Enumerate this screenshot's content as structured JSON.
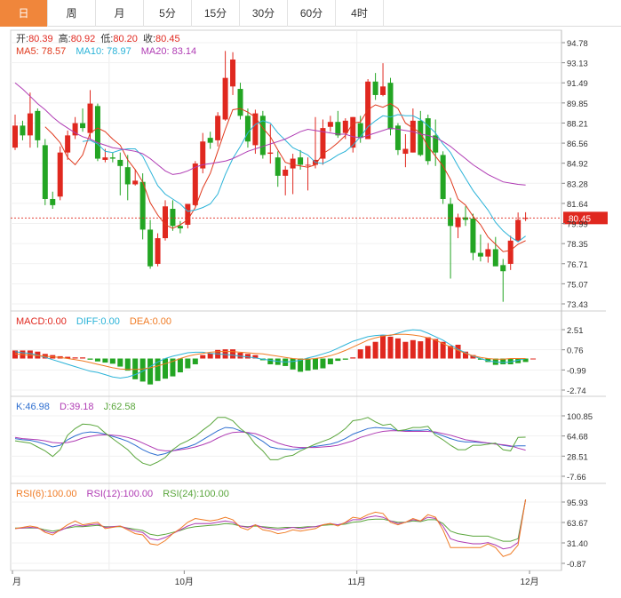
{
  "tabs": [
    {
      "label": "日",
      "active": true
    },
    {
      "label": "周",
      "active": false
    },
    {
      "label": "月",
      "active": false
    },
    {
      "label": "5分",
      "active": false
    },
    {
      "label": "15分",
      "active": false
    },
    {
      "label": "30分",
      "active": false
    },
    {
      "label": "60分",
      "active": false
    },
    {
      "label": "4时",
      "active": false
    }
  ],
  "legend": {
    "ohlc": {
      "open_label": "开:",
      "open": "80.39",
      "high_label": "高:",
      "high": "80.92",
      "low_label": "低:",
      "low": "80.20",
      "close_label": "收:",
      "close": "80.45"
    },
    "ma": {
      "ma5": "MA5: 78.57",
      "ma10": "MA10: 78.97",
      "ma20": "MA20: 83.14"
    },
    "macd": {
      "macd": "MACD:0.00",
      "diff": "DIFF:0.00",
      "dea": "DEA:0.00"
    },
    "kdj": {
      "k": "K:46.98",
      "d": "D:39.18",
      "j": "J:62.58"
    },
    "rsi": {
      "rsi6": "RSI(6):100.00",
      "rsi12": "RSI(12):100.00",
      "rsi24": "RSI(24):100.00"
    }
  },
  "colors": {
    "up": "#e0281f",
    "down": "#23a523",
    "ma5": "#e0381c",
    "ma10": "#2bb3d8",
    "ma20": "#b03cb4",
    "diff": "#2bb3d8",
    "dea": "#f07b24",
    "k": "#2f6fd0",
    "d": "#b03cb4",
    "j": "#5aa63c",
    "tab_active": "#f0863b",
    "last_price": "#e0281f"
  },
  "x_labels": [
    "月",
    "10月",
    "11月",
    "12月"
  ],
  "chart_data": [
    {
      "type": "candlestick",
      "y_ticks": [
        "94.78",
        "93.13",
        "91.49",
        "89.85",
        "88.21",
        "86.56",
        "84.92",
        "83.28",
        "81.64",
        "79.99",
        "78.35",
        "76.71",
        "75.07",
        "73.43"
      ],
      "ylim": [
        72.6,
        95.6
      ],
      "last_price": "80.45",
      "candles": [
        [
          86.2,
          88.9,
          86.0,
          88.0
        ],
        [
          88.0,
          88.4,
          86.8,
          87.2
        ],
        [
          87.2,
          90.7,
          86.2,
          89.0
        ],
        [
          89.2,
          89.4,
          86.2,
          86.8
        ],
        [
          86.4,
          86.9,
          81.5,
          82.0
        ],
        [
          82.0,
          82.6,
          81.2,
          81.5
        ],
        [
          82.2,
          86.3,
          81.9,
          85.8
        ],
        [
          85.8,
          87.6,
          85.2,
          87.2
        ],
        [
          87.2,
          88.7,
          86.9,
          88.2
        ],
        [
          88.2,
          89.4,
          87.5,
          87.8
        ],
        [
          87.4,
          90.9,
          86.9,
          89.8
        ],
        [
          89.6,
          89.8,
          85.1,
          85.3
        ],
        [
          85.2,
          86.1,
          85.0,
          85.4
        ],
        [
          85.4,
          85.8,
          85.0,
          85.3
        ],
        [
          85.2,
          85.8,
          82.3,
          84.7
        ],
        [
          84.6,
          85.6,
          81.9,
          83.2
        ],
        [
          83.2,
          84.4,
          83.1,
          83.5
        ],
        [
          83.4,
          84.1,
          78.7,
          79.5
        ],
        [
          79.5,
          80.3,
          76.3,
          76.5
        ],
        [
          76.7,
          79.2,
          76.5,
          78.8
        ],
        [
          78.8,
          81.9,
          78.6,
          81.4
        ],
        [
          81.2,
          81.9,
          79.4,
          79.8
        ],
        [
          79.8,
          80.2,
          79.2,
          79.6
        ],
        [
          79.9,
          81.6,
          79.6,
          81.6
        ],
        [
          81.5,
          85.1,
          81.4,
          84.9
        ],
        [
          84.5,
          87.4,
          84.1,
          86.7
        ],
        [
          87.0,
          87.5,
          86.1,
          86.6
        ],
        [
          86.8,
          89.1,
          86.3,
          88.8
        ],
        [
          88.5,
          94.1,
          88.4,
          91.9
        ],
        [
          91.2,
          94.0,
          90.5,
          93.4
        ],
        [
          91.0,
          91.5,
          88.5,
          88.8
        ],
        [
          88.8,
          89.4,
          86.2,
          86.7
        ],
        [
          86.4,
          89.3,
          85.7,
          89.0
        ],
        [
          88.8,
          89.2,
          85.3,
          85.6
        ],
        [
          85.7,
          88.1,
          84.9,
          85.8
        ],
        [
          85.4,
          85.9,
          83.0,
          83.9
        ],
        [
          83.9,
          84.7,
          82.3,
          84.4
        ],
        [
          84.5,
          85.7,
          82.4,
          85.3
        ],
        [
          85.4,
          86.0,
          84.4,
          84.8
        ],
        [
          84.8,
          85.4,
          82.7,
          84.8
        ],
        [
          84.8,
          88.7,
          84.5,
          85.2
        ],
        [
          85.3,
          88.5,
          84.8,
          87.8
        ],
        [
          87.9,
          88.8,
          87.5,
          88.3
        ],
        [
          88.3,
          89.2,
          87.0,
          87.2
        ],
        [
          87.4,
          88.6,
          86.9,
          88.4
        ],
        [
          86.2,
          88.7,
          85.8,
          88.7
        ],
        [
          88.2,
          88.8,
          86.6,
          87.0
        ],
        [
          86.9,
          91.8,
          86.9,
          91.6
        ],
        [
          91.6,
          92.3,
          90.1,
          90.5
        ],
        [
          90.5,
          93.1,
          90.4,
          91.2
        ],
        [
          91.5,
          91.9,
          87.2,
          87.7
        ],
        [
          88.0,
          88.2,
          85.6,
          86.0
        ],
        [
          85.7,
          87.3,
          84.6,
          86.1
        ],
        [
          85.8,
          89.4,
          85.8,
          88.4
        ],
        [
          88.4,
          89.2,
          85.5,
          85.6
        ],
        [
          88.6,
          88.9,
          84.8,
          85.1
        ],
        [
          87.2,
          88.5,
          84.7,
          85.8
        ],
        [
          85.6,
          85.9,
          81.6,
          82.0
        ],
        [
          81.6,
          82.1,
          75.5,
          79.8
        ],
        [
          79.7,
          80.8,
          78.8,
          80.5
        ],
        [
          80.5,
          81.4,
          79.8,
          80.3
        ],
        [
          80.4,
          80.8,
          77.0,
          77.6
        ],
        [
          77.6,
          79.1,
          76.9,
          77.3
        ],
        [
          77.3,
          78.4,
          76.8,
          77.9
        ],
        [
          77.9,
          78.9,
          76.7,
          76.5
        ],
        [
          76.6,
          77.1,
          73.6,
          76.1
        ],
        [
          76.7,
          79.0,
          76.2,
          78.6
        ],
        [
          78.6,
          80.9,
          78.5,
          80.3
        ],
        [
          80.39,
          80.92,
          80.2,
          80.45
        ]
      ],
      "ma5": [
        null,
        null,
        null,
        null,
        87.9,
        87.3,
        86.6,
        85.4,
        84.8,
        85.6,
        87.4,
        87.8,
        87.5,
        86.9,
        86.4,
        85.2,
        84.4,
        83.4,
        81.7,
        80.7,
        79.9,
        79.6,
        79.9,
        80.3,
        81.3,
        82.9,
        84.1,
        85.9,
        87.7,
        89.3,
        89.4,
        89.1,
        88.7,
        87.8,
        87.1,
        86.0,
        85.0,
        84.8,
        84.7,
        84.6,
        84.8,
        85.7,
        86.1,
        86.6,
        87.2,
        88.2,
        88.3,
        89.3,
        89.7,
        89.5,
        89.8,
        89.4,
        88.2,
        87.8,
        87.4,
        86.3,
        85.5,
        84.7,
        83.6,
        82.0,
        81.5,
        80.6,
        79.9,
        78.9,
        78.3,
        77.7,
        77.8,
        78.3,
        78.6
      ],
      "ma10": [
        null,
        null,
        null,
        null,
        null,
        null,
        null,
        null,
        null,
        86.7,
        86.8,
        86.5,
        85.9,
        85.8,
        86.0,
        86.1,
        86.1,
        85.5,
        84.3,
        83.1,
        82.4,
        82.0,
        81.6,
        81.0,
        81.1,
        81.3,
        81.6,
        82.4,
        84.0,
        85.3,
        86.3,
        87.4,
        88.1,
        88.4,
        88.2,
        87.4,
        86.8,
        86.2,
        85.9,
        85.6,
        85.0,
        84.9,
        85.2,
        85.6,
        85.9,
        86.4,
        87.1,
        87.9,
        88.4,
        88.8,
        88.7,
        88.9,
        88.8,
        88.8,
        88.5,
        88.0,
        87.4,
        86.5,
        85.8,
        84.7,
        83.7,
        82.7,
        81.9,
        81.1,
        80.1,
        79.4,
        78.9,
        78.5,
        78.97
      ],
      "ma20": [
        91.5,
        91.0,
        90.4,
        89.8,
        89.3,
        88.7,
        88.2,
        87.8,
        87.4,
        87.1,
        86.9,
        86.6,
        86.4,
        86.2,
        86.1,
        86.0,
        85.9,
        85.7,
        85.3,
        84.8,
        84.3,
        84.0,
        84.1,
        84.3,
        84.6,
        84.8,
        84.9,
        85.0,
        85.1,
        85.3,
        85.6,
        85.9,
        86.1,
        86.3,
        86.5,
        86.7,
        86.9,
        87.2,
        87.5,
        87.7,
        87.6,
        87.5,
        87.4,
        87.3,
        87.3,
        87.1,
        87.0,
        87.2,
        87.4,
        87.6,
        87.8,
        87.7,
        87.6,
        87.5,
        87.3,
        87.2,
        87.0,
        86.7,
        86.3,
        85.8,
        85.3,
        84.8,
        84.4,
        84.0,
        83.7,
        83.4,
        83.3,
        83.2,
        83.14
      ]
    },
    {
      "type": "macd",
      "y_ticks": [
        "2.51",
        "0.76",
        "-0.99",
        "-2.74"
      ],
      "ylim": [
        -3.6,
        3.3
      ],
      "hist": [
        0.7,
        0.7,
        0.7,
        0.6,
        0.4,
        0.3,
        0.2,
        0.15,
        0.1,
        0.1,
        -0.1,
        -0.25,
        -0.35,
        -0.45,
        -0.7,
        -1.05,
        -1.8,
        -2.0,
        -2.25,
        -1.95,
        -1.75,
        -1.55,
        -1.2,
        -0.85,
        -0.5,
        0.3,
        0.45,
        0.75,
        0.8,
        0.8,
        0.5,
        0.4,
        0.3,
        -0.15,
        -0.5,
        -0.55,
        -0.65,
        -0.95,
        -1.15,
        -1.05,
        -0.95,
        -0.85,
        -0.5,
        -0.2,
        -0.1,
        0.1,
        0.8,
        1.1,
        1.45,
        2.0,
        1.9,
        1.75,
        1.45,
        1.6,
        1.5,
        1.85,
        1.7,
        1.45,
        1.1,
        1.2,
        0.6,
        0.3,
        -0.1,
        -0.3,
        -0.55,
        -0.5,
        -0.5,
        -0.4,
        -0.3,
        0.0
      ],
      "diff": [
        0.6,
        0.5,
        0.45,
        0.3,
        0.1,
        -0.1,
        -0.3,
        -0.5,
        -0.7,
        -0.9,
        -1.1,
        -1.2,
        -1.4,
        -1.6,
        -1.7,
        -1.6,
        -1.4,
        -1.1,
        -0.7,
        -0.3,
        0.0,
        0.2,
        0.35,
        0.5,
        0.55,
        0.55,
        0.45,
        0.4,
        0.35,
        0.3,
        0.2,
        0.15,
        0.05,
        -0.05,
        -0.15,
        -0.25,
        -0.3,
        -0.25,
        -0.15,
        0.05,
        0.2,
        0.4,
        0.6,
        0.9,
        1.2,
        1.5,
        1.7,
        1.9,
        2.0,
        2.05,
        2.0,
        2.2,
        2.4,
        2.5,
        2.45,
        2.2,
        1.9,
        1.6,
        1.2,
        0.8,
        0.5,
        0.2,
        0.0,
        -0.2,
        -0.3,
        -0.35,
        -0.3,
        -0.15,
        0.0
      ],
      "dea": [
        0.4,
        0.35,
        0.3,
        0.25,
        0.2,
        0.15,
        0.1,
        0.0,
        -0.1,
        -0.2,
        -0.35,
        -0.5,
        -0.65,
        -0.8,
        -0.9,
        -0.95,
        -0.95,
        -0.9,
        -0.8,
        -0.65,
        -0.45,
        -0.25,
        0.0,
        0.2,
        0.35,
        0.45,
        0.55,
        0.6,
        0.62,
        0.6,
        0.55,
        0.5,
        0.45,
        0.4,
        0.3,
        0.2,
        0.1,
        0.0,
        -0.05,
        -0.05,
        0.0,
        0.1,
        0.25,
        0.45,
        0.7,
        1.0,
        1.3,
        1.6,
        1.8,
        1.95,
        2.05,
        2.1,
        2.1,
        2.05,
        1.95,
        1.8,
        1.6,
        1.3,
        1.0,
        0.7,
        0.45,
        0.25,
        0.1,
        0.0,
        -0.05,
        -0.05,
        0.0,
        0.0,
        0.0
      ]
    },
    {
      "type": "kdj",
      "y_ticks": [
        "100.85",
        "64.68",
        "28.51",
        "-7.66"
      ],
      "ylim": [
        -12,
        108
      ],
      "k": [
        60,
        58,
        57,
        54,
        50,
        45,
        48,
        58,
        65,
        70,
        72,
        71,
        68,
        64,
        60,
        55,
        48,
        40,
        34,
        30,
        33,
        38,
        42,
        45,
        50,
        58,
        66,
        74,
        80,
        79,
        74,
        70,
        63,
        55,
        45,
        42,
        41,
        40,
        42,
        44,
        46,
        48,
        50,
        54,
        60,
        68,
        73,
        78,
        80,
        79,
        78,
        74,
        74,
        75,
        75,
        76,
        70,
        65,
        60,
        56,
        54,
        54,
        53,
        52,
        51,
        48,
        46,
        47,
        46.98
      ],
      "d": [
        62,
        60,
        59,
        58,
        56,
        53,
        52,
        53,
        56,
        61,
        64,
        66,
        67,
        66,
        65,
        62,
        58,
        52,
        46,
        40,
        38,
        38,
        40,
        42,
        45,
        49,
        54,
        61,
        67,
        71,
        72,
        71,
        69,
        64,
        58,
        52,
        48,
        45,
        44,
        44,
        44,
        45,
        46,
        48,
        52,
        56,
        62,
        66,
        70,
        73,
        74,
        74,
        73,
        73,
        73,
        73,
        72,
        69,
        66,
        62,
        58,
        56,
        54,
        52,
        50,
        49,
        47,
        43,
        39.18
      ],
      "j": [
        56,
        54,
        52,
        45,
        38,
        28,
        40,
        66,
        78,
        86,
        85,
        82,
        70,
        60,
        50,
        40,
        26,
        16,
        12,
        18,
        26,
        40,
        50,
        56,
        64,
        75,
        85,
        98,
        98,
        92,
        78,
        68,
        50,
        38,
        22,
        22,
        28,
        30,
        38,
        44,
        50,
        55,
        60,
        68,
        78,
        92,
        94,
        98,
        90,
        84,
        86,
        74,
        76,
        80,
        80,
        82,
        66,
        58,
        48,
        40,
        40,
        48,
        48,
        50,
        52,
        40,
        38,
        62,
        62.58
      ]
    },
    {
      "type": "rsi",
      "y_ticks": [
        "95.93",
        "63.67",
        "31.40",
        "-0.87"
      ],
      "ylim": [
        -8,
        104
      ],
      "rsi6": [
        54,
        56,
        58,
        56,
        48,
        44,
        52,
        60,
        66,
        60,
        62,
        64,
        54,
        56,
        58,
        52,
        46,
        44,
        30,
        28,
        35,
        46,
        54,
        64,
        70,
        68,
        66,
        68,
        72,
        68,
        56,
        52,
        60,
        52,
        50,
        46,
        48,
        52,
        50,
        52,
        54,
        60,
        62,
        58,
        64,
        72,
        70,
        76,
        80,
        78,
        64,
        60,
        64,
        70,
        66,
        76,
        72,
        52,
        24,
        24,
        24,
        24,
        24,
        30,
        24,
        10,
        14,
        28,
        100
      ],
      "rsi12": [
        54,
        55,
        56,
        55,
        50,
        47,
        51,
        56,
        60,
        58,
        60,
        61,
        56,
        57,
        58,
        54,
        50,
        48,
        38,
        36,
        40,
        46,
        52,
        58,
        62,
        62,
        62,
        64,
        66,
        64,
        58,
        56,
        60,
        56,
        54,
        52,
        54,
        56,
        54,
        56,
        57,
        60,
        62,
        60,
        63,
        68,
        68,
        72,
        74,
        72,
        66,
        62,
        64,
        68,
        66,
        72,
        70,
        58,
        38,
        34,
        32,
        30,
        30,
        32,
        28,
        22,
        24,
        32,
        100
      ],
      "rsi24": [
        55,
        55,
        55,
        55,
        52,
        50,
        52,
        55,
        57,
        57,
        58,
        59,
        57,
        57,
        57,
        55,
        53,
        51,
        45,
        43,
        45,
        48,
        51,
        55,
        57,
        58,
        59,
        60,
        62,
        61,
        58,
        57,
        58,
        57,
        56,
        55,
        56,
        56,
        56,
        57,
        57,
        59,
        60,
        60,
        61,
        64,
        65,
        68,
        69,
        69,
        66,
        64,
        64,
        66,
        65,
        68,
        68,
        62,
        50,
        46,
        44,
        42,
        42,
        42,
        38,
        34,
        34,
        38,
        100
      ]
    }
  ]
}
